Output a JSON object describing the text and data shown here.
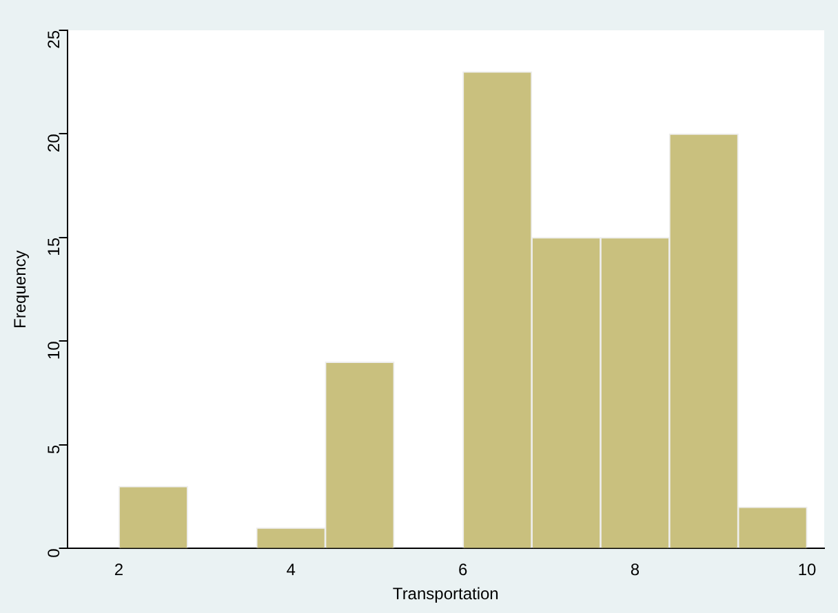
{
  "chart_data": {
    "type": "histogram",
    "xlabel": "Transportation",
    "ylabel": "Frequency",
    "bins": [
      2,
      2.8,
      3.6,
      4.4,
      5.2,
      6,
      6.8,
      7.6,
      8.4,
      9.2,
      10
    ],
    "values": [
      3,
      0,
      1,
      9,
      0,
      23,
      15,
      15,
      20,
      2
    ],
    "color": "#c9c07e",
    "xlim": [
      1.4,
      10.2
    ],
    "xticks": [
      2,
      4,
      6,
      8,
      10
    ],
    "ylim": [
      0,
      25
    ],
    "yticks": [
      0,
      5,
      10,
      15,
      20,
      25
    ],
    "grid": false,
    "legend": false
  }
}
